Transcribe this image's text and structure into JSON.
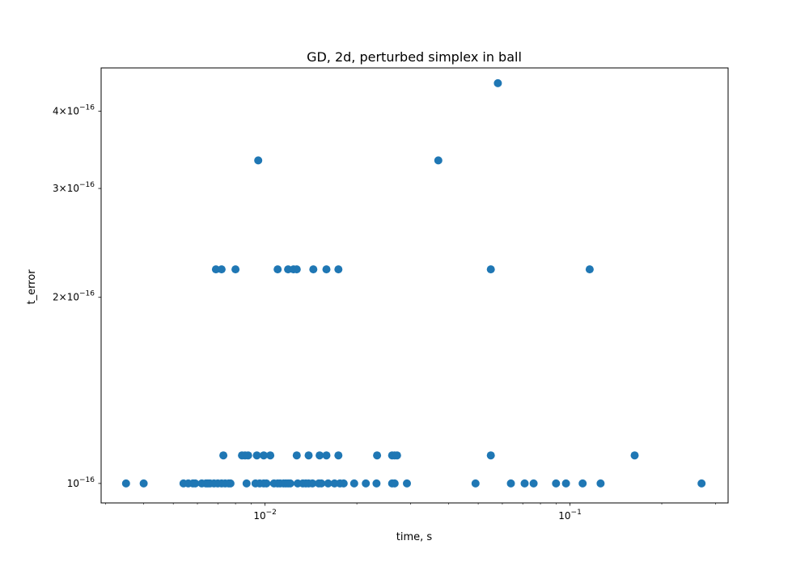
{
  "chart_data": {
    "type": "scatter",
    "title": "GD, 2d, perturbed simplex in ball",
    "xlabel": "time, s",
    "ylabel": "t_error",
    "xscale": "log",
    "yscale": "log",
    "xlim": [
      0.0029,
      0.33
    ],
    "ylim": [
      9.3e-17,
      4.7e-16
    ],
    "grid": false,
    "marker_color": "#1f77b4",
    "x_ticks": [
      {
        "value": 0.01,
        "base": "10",
        "exp": "−2"
      },
      {
        "value": 0.1,
        "base": "10",
        "exp": "−1"
      }
    ],
    "y_ticks": [
      {
        "value": 1e-16,
        "mant": "",
        "base": "10",
        "exp": "−16"
      },
      {
        "value": 2e-16,
        "mant": "2",
        "base": "10",
        "exp": "−16"
      },
      {
        "value": 3e-16,
        "mant": "3",
        "base": "10",
        "exp": "−16"
      },
      {
        "value": 4e-16,
        "mant": "4",
        "base": "10",
        "exp": "−16"
      }
    ],
    "series": [
      {
        "points": [
          [
            0.0035,
            1e-16
          ],
          [
            0.004,
            1e-16
          ],
          [
            0.0054,
            1e-16
          ],
          [
            0.0056,
            1e-16
          ],
          [
            0.0058,
            1e-16
          ],
          [
            0.0059,
            1e-16
          ],
          [
            0.0062,
            1e-16
          ],
          [
            0.0064,
            1e-16
          ],
          [
            0.0065,
            1e-16
          ],
          [
            0.0066,
            1e-16
          ],
          [
            0.0068,
            1e-16
          ],
          [
            0.007,
            1e-16
          ],
          [
            0.0072,
            1e-16
          ],
          [
            0.0074,
            1e-16
          ],
          [
            0.0076,
            1e-16
          ],
          [
            0.0077,
            1e-16
          ],
          [
            0.0087,
            1e-16
          ],
          [
            0.0093,
            1e-16
          ],
          [
            0.0096,
            1e-16
          ],
          [
            0.0099,
            1e-16
          ],
          [
            0.0101,
            1e-16
          ],
          [
            0.0107,
            1e-16
          ],
          [
            0.011,
            1e-16
          ],
          [
            0.0112,
            1e-16
          ],
          [
            0.0115,
            1e-16
          ],
          [
            0.0117,
            1e-16
          ],
          [
            0.0119,
            1e-16
          ],
          [
            0.0121,
            1e-16
          ],
          [
            0.0128,
            1e-16
          ],
          [
            0.0133,
            1e-16
          ],
          [
            0.0136,
            1e-16
          ],
          [
            0.0139,
            1e-16
          ],
          [
            0.0143,
            1e-16
          ],
          [
            0.015,
            1e-16
          ],
          [
            0.0153,
            1e-16
          ],
          [
            0.0161,
            1e-16
          ],
          [
            0.0169,
            1e-16
          ],
          [
            0.0176,
            1e-16
          ],
          [
            0.0181,
            1e-16
          ],
          [
            0.0196,
            1e-16
          ],
          [
            0.0214,
            1e-16
          ],
          [
            0.0232,
            1e-16
          ],
          [
            0.0261,
            1e-16
          ],
          [
            0.0266,
            1e-16
          ],
          [
            0.0292,
            1e-16
          ],
          [
            0.049,
            1e-16
          ],
          [
            0.064,
            1e-16
          ],
          [
            0.071,
            1e-16
          ],
          [
            0.076,
            1e-16
          ],
          [
            0.09,
            1e-16
          ],
          [
            0.097,
            1e-16
          ],
          [
            0.11,
            1e-16
          ],
          [
            0.126,
            1e-16
          ],
          [
            0.27,
            1e-16
          ],
          [
            0.0073,
            1.11e-16
          ],
          [
            0.0084,
            1.11e-16
          ],
          [
            0.0086,
            1.11e-16
          ],
          [
            0.0088,
            1.11e-16
          ],
          [
            0.0094,
            1.11e-16
          ],
          [
            0.0099,
            1.11e-16
          ],
          [
            0.0104,
            1.11e-16
          ],
          [
            0.0127,
            1.11e-16
          ],
          [
            0.0139,
            1.11e-16
          ],
          [
            0.0151,
            1.11e-16
          ],
          [
            0.0159,
            1.11e-16
          ],
          [
            0.0174,
            1.11e-16
          ],
          [
            0.0233,
            1.11e-16
          ],
          [
            0.0261,
            1.11e-16
          ],
          [
            0.0266,
            1.11e-16
          ],
          [
            0.0271,
            1.11e-16
          ],
          [
            0.055,
            1.11e-16
          ],
          [
            0.163,
            1.11e-16
          ],
          [
            0.0069,
            2.22e-16
          ],
          [
            0.0072,
            2.22e-16
          ],
          [
            0.008,
            2.22e-16
          ],
          [
            0.011,
            2.22e-16
          ],
          [
            0.0119,
            2.22e-16
          ],
          [
            0.0124,
            2.22e-16
          ],
          [
            0.0127,
            2.22e-16
          ],
          [
            0.0144,
            2.22e-16
          ],
          [
            0.0159,
            2.22e-16
          ],
          [
            0.0174,
            2.22e-16
          ],
          [
            0.055,
            2.22e-16
          ],
          [
            0.116,
            2.22e-16
          ],
          [
            0.0095,
            3.33e-16
          ],
          [
            0.037,
            3.33e-16
          ],
          [
            0.058,
            4.44e-16
          ]
        ]
      }
    ]
  }
}
